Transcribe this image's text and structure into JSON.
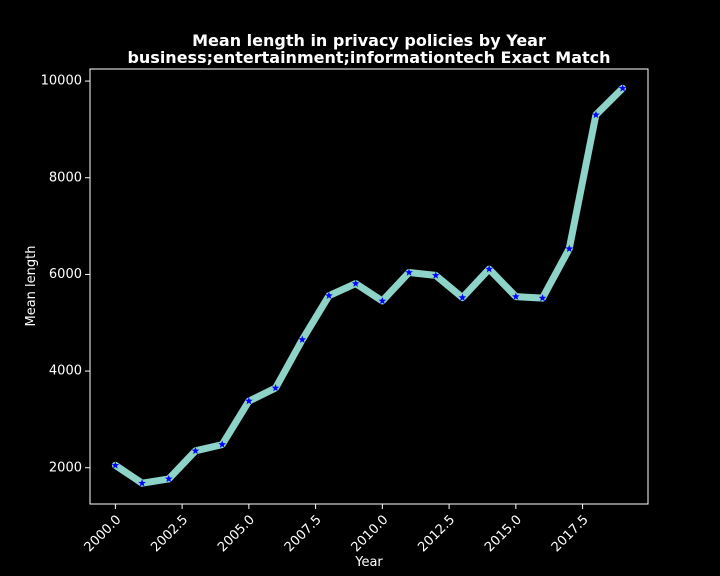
{
  "chart_data": {
    "type": "line",
    "title": "Mean length in privacy policies by Year",
    "subtitle": "business;entertainment;informationtech Exact Match",
    "xlabel": "Year",
    "ylabel": "Mean length",
    "xlim": [
      1999.05,
      2019.95
    ],
    "ylim": [
      1250,
      10250
    ],
    "xticks": [
      2000.0,
      2002.5,
      2005.0,
      2007.5,
      2010.0,
      2012.5,
      2015.0,
      2017.5
    ],
    "xtick_labels": [
      "2000.0",
      "2002.5",
      "2005.0",
      "2007.5",
      "2010.0",
      "2012.5",
      "2015.0",
      "2017.5"
    ],
    "yticks": [
      2000,
      4000,
      6000,
      8000,
      10000
    ],
    "ytick_labels": [
      "2000",
      "4000",
      "6000",
      "8000",
      "10000"
    ],
    "grid": false,
    "legend": "none",
    "series": [
      {
        "x": [
          2000,
          2001,
          2002,
          2003,
          2004,
          2005,
          2006,
          2007,
          2008,
          2009,
          2010,
          2011,
          2012,
          2013,
          2014,
          2015,
          2016,
          2017,
          2018,
          2019
        ],
        "values": [
          2050,
          1680,
          1770,
          2350,
          2480,
          3380,
          3650,
          4650,
          5560,
          5810,
          5450,
          6040,
          5980,
          5520,
          6110,
          5540,
          5510,
          6530,
          9300,
          9850
        ],
        "line_color": "#8dd3c7",
        "marker_color": "#0000ff",
        "marker": "star"
      }
    ]
  },
  "colors": {
    "background": "#000000",
    "axes": "#ffffff",
    "text": "#ffffff"
  }
}
